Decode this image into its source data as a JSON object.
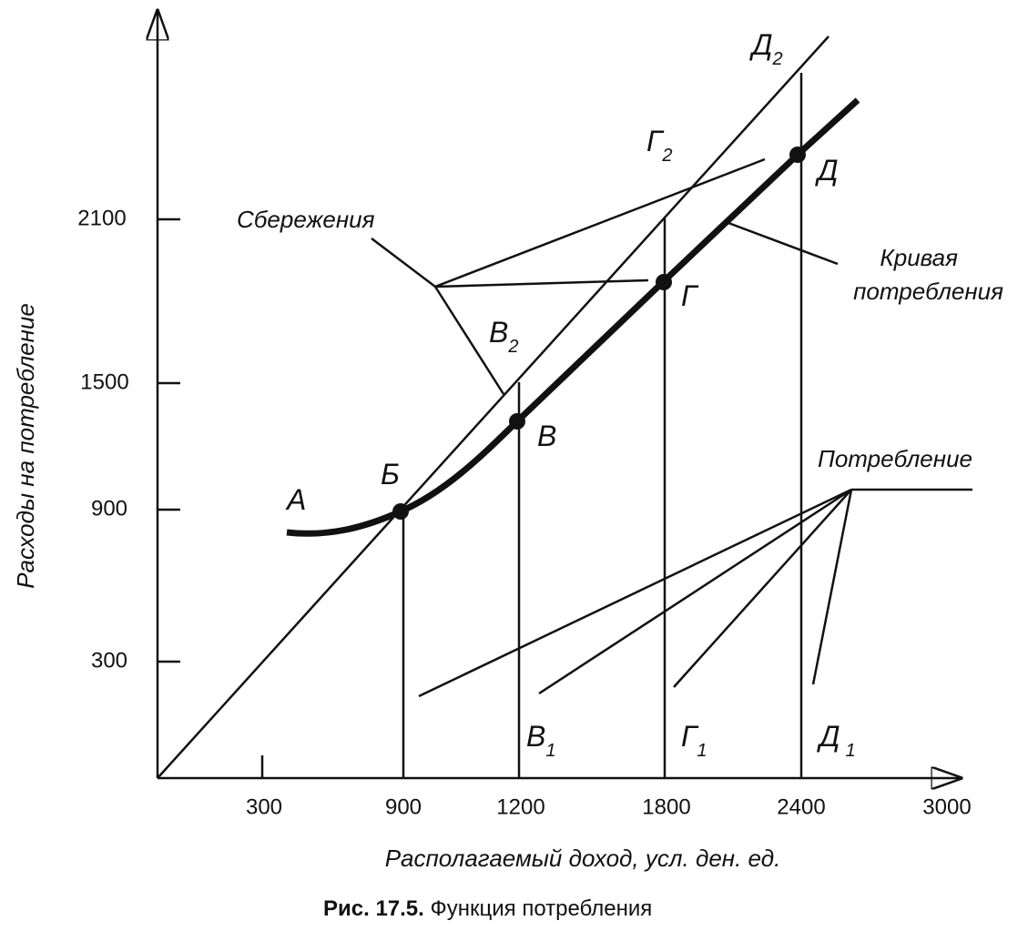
{
  "axes": {
    "y_label": "Расходы на потребление",
    "x_label": "Располагаемый доход, усл. ден. ед.",
    "x_ticks": [
      "300",
      "900",
      "1200",
      "1800",
      "2400",
      "3000"
    ],
    "y_ticks": [
      "300",
      "900",
      "1500",
      "2100"
    ]
  },
  "points": [
    {
      "base": "А"
    },
    {
      "base": "Б"
    },
    {
      "base": "В"
    },
    {
      "base": "Г"
    },
    {
      "base": "Д"
    },
    {
      "base": "В",
      "sub": "2"
    },
    {
      "base": "Г",
      "sub": "2"
    },
    {
      "base": "Д",
      "sub": "2"
    },
    {
      "base": "В",
      "sub": "1"
    },
    {
      "base": "Г",
      "sub": "1"
    },
    {
      "base": "Д",
      "sub": "1"
    }
  ],
  "annotations": {
    "savings": "Сбережения",
    "curve": [
      "Кривая",
      "потребления"
    ],
    "consumption": "Потребление"
  },
  "caption": {
    "number": "Рис. 17.5.",
    "text": "Функция потребления"
  }
}
